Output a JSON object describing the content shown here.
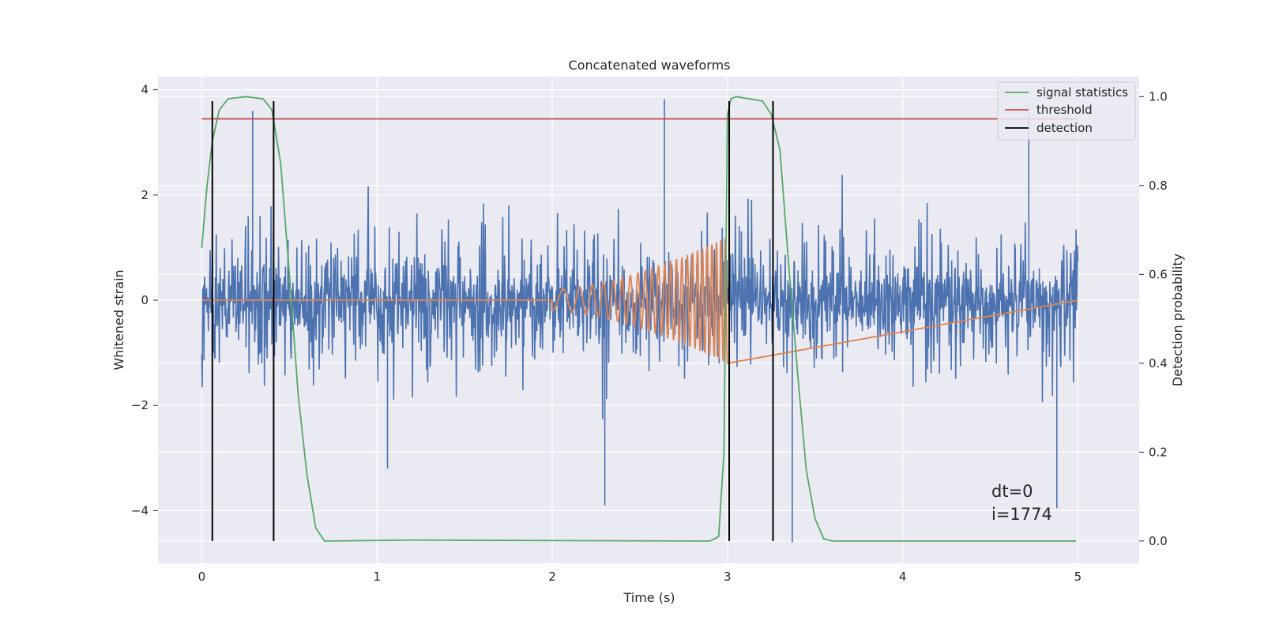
{
  "chart_data": {
    "type": "line",
    "title": "Concatenated waveforms",
    "xlabel": "Time (s)",
    "ylabel": "Whitened strain",
    "y2label": "Detection probability",
    "xlim": [
      -0.25,
      5.35
    ],
    "ylim": [
      -5.0,
      4.25
    ],
    "y2lim": [
      -0.05,
      1.045
    ],
    "xticks": [
      0,
      1,
      2,
      3,
      4,
      5
    ],
    "xtick_labels": [
      "0",
      "1",
      "2",
      "3",
      "4",
      "5"
    ],
    "yticks": [
      -4,
      -2,
      0,
      2,
      4
    ],
    "ytick_labels": [
      "−4",
      "−2",
      "0",
      "2",
      "4"
    ],
    "y2ticks": [
      0.0,
      0.2,
      0.4,
      0.6,
      0.8,
      1.0
    ],
    "y2tick_labels": [
      "0.0",
      "0.2",
      "0.4",
      "0.6",
      "0.8",
      "1.0"
    ],
    "grid": true,
    "legend_position": "top-right",
    "colors": {
      "noise": "#4c72b0",
      "injection": "#dd8452",
      "signal_statistics": "#55a868",
      "threshold": "#c44e52",
      "detection": "#000000",
      "plot_background": "#eaeaf2",
      "grid": "#ffffff"
    },
    "series": [
      {
        "name": "",
        "axis": "left",
        "color": "#4c72b0",
        "description_samples": {
          "x_range": [
            0,
            5
          ],
          "approx_amplitude_range": [
            -4.6,
            3.8
          ],
          "notable_extremes": [
            {
              "x": 0.29,
              "y": 3.6
            },
            {
              "x": 2.64,
              "y": 3.82
            },
            {
              "x": 3.26,
              "y": 3.42
            },
            {
              "x": 4.72,
              "y": 3.55
            },
            {
              "x": 3.37,
              "y": -4.6
            },
            {
              "x": 2.3,
              "y": -3.9
            },
            {
              "x": 4.88,
              "y": -3.95
            },
            {
              "x": 1.06,
              "y": -3.2
            }
          ]
        }
      },
      {
        "name": "",
        "axis": "left",
        "color": "#dd8452",
        "chirp": {
          "start": 2.0,
          "end": 3.0,
          "amp_start": 0.2,
          "amp_end": 1.2,
          "flat_value": 0
        }
      },
      {
        "name": "signal statistics",
        "axis": "right",
        "color": "#55a868",
        "x": [
          0.0,
          0.03,
          0.06,
          0.1,
          0.15,
          0.25,
          0.35,
          0.4,
          0.45,
          0.5,
          0.55,
          0.6,
          0.65,
          0.7,
          1.2,
          2.9,
          2.95,
          2.98,
          3.0,
          3.02,
          3.05,
          3.2,
          3.25,
          3.3,
          3.35,
          3.4,
          3.45,
          3.5,
          3.55,
          3.6,
          4.99
        ],
        "y": [
          0.66,
          0.8,
          0.9,
          0.97,
          0.995,
          1.0,
          0.995,
          0.97,
          0.85,
          0.6,
          0.33,
          0.15,
          0.03,
          0.0,
          0.002,
          0.0,
          0.01,
          0.2,
          0.96,
          0.995,
          1.0,
          0.99,
          0.96,
          0.88,
          0.62,
          0.38,
          0.16,
          0.05,
          0.005,
          0.0,
          0.0
        ]
      },
      {
        "name": "threshold",
        "axis": "right",
        "color": "#c44e52",
        "x": [
          0,
          5
        ],
        "y": [
          0.95,
          0.95
        ]
      }
    ],
    "detections": {
      "name": "detection",
      "color": "#000000",
      "x": [
        0.06,
        0.41,
        3.01,
        3.26
      ],
      "y2_range": [
        0.0,
        0.99
      ]
    },
    "annotations": [
      "dt=0",
      "i=1774"
    ]
  }
}
